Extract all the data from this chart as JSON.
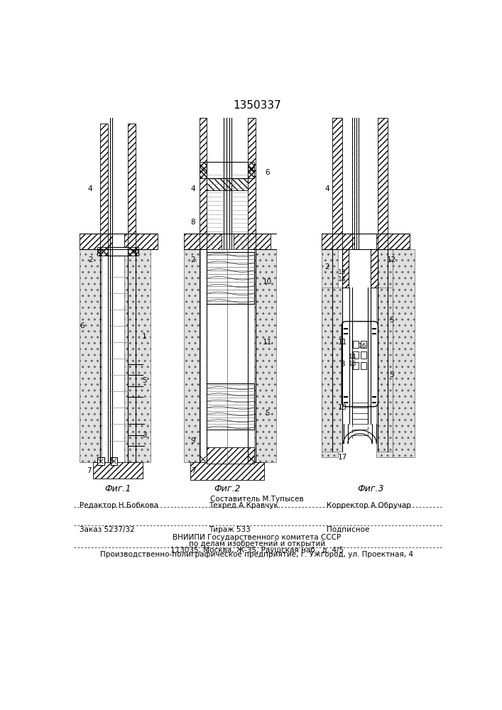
{
  "patent_number": "1350337",
  "fig_labels": [
    "Фиг.1",
    "Фиг.2",
    "Фиг.3"
  ],
  "footer_line1": "Составитель М.Тупысев",
  "footer_line2_left": "Редактор Н.Бобкова",
  "footer_line2_mid": "Техред А.Кравчук",
  "footer_line2_right": "Корректор А.Обручар",
  "footer_line3_left": "Заказ 5237/32",
  "footer_line3_mid": "Тираж 533",
  "footer_line3_right": "Подписное",
  "footer_line4": "ВНИИПИ Государственного комитета СССР",
  "footer_line5": "по делам изобретений и открытий",
  "footer_line6": "113035, Москва, Ж-35, Раушская наб., д. 4/5",
  "footer_line7": "Производственно-полиграфическое предприятие, г. Ужгород, ул. Проектная, 4",
  "bg_color": "#ffffff",
  "line_color": "#000000"
}
